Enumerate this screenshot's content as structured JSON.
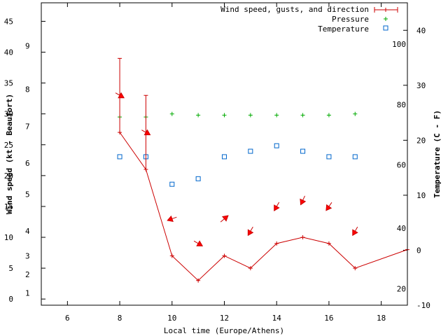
{
  "chart_data": {
    "type": "line",
    "xlabel": "Local time (Europe/Athens)",
    "ylabel": "Wind speed (kt - Beaufort)",
    "y2label": "Temperature (C - F)",
    "xlim": [
      5,
      19
    ],
    "ylim": [
      -1,
      48
    ],
    "x_ticks": [
      6,
      8,
      10,
      12,
      14,
      16,
      18
    ],
    "y_ticks": [
      0,
      5,
      10,
      15,
      20,
      25,
      30,
      35,
      40,
      45
    ],
    "y2lim": [
      -10,
      45
    ],
    "y2_ticks": [
      -10,
      0,
      10,
      20,
      30,
      40
    ],
    "beaufort_labels": [
      {
        "label": "1",
        "kt": 1
      },
      {
        "label": "2",
        "kt": 4
      },
      {
        "label": "3",
        "kt": 7
      },
      {
        "label": "4",
        "kt": 11
      },
      {
        "label": "5",
        "kt": 17
      },
      {
        "label": "6",
        "kt": 22
      },
      {
        "label": "7",
        "kt": 28
      },
      {
        "label": "8",
        "kt": 34
      },
      {
        "label": "9",
        "kt": 41
      }
    ],
    "fahrenheit_labels": [
      {
        "label": "20",
        "c": -7
      },
      {
        "label": "40",
        "c": 4
      },
      {
        "label": "60",
        "c": 15.5
      },
      {
        "label": "80",
        "c": 26.5
      },
      {
        "label": "100",
        "c": 37.5
      }
    ],
    "legend": [
      "Wind speed, gusts, and direction",
      "Pressure",
      "Temperature"
    ],
    "series": [
      {
        "name": "Wind speed, gusts, and direction",
        "color": "#cc0000",
        "x": [
          8,
          9,
          10,
          11,
          12,
          13,
          14,
          15,
          16,
          17,
          19
        ],
        "values": [
          27,
          21,
          7,
          3,
          7,
          5,
          9,
          10,
          9,
          5,
          8
        ],
        "gusts": [
          39,
          33,
          null,
          null,
          null,
          null,
          null,
          null,
          null,
          null,
          null
        ],
        "direction_deg": [
          120,
          120,
          250,
          120,
          50,
          210,
          210,
          205,
          215,
          210,
          null
        ]
      },
      {
        "name": "Pressure",
        "color": "#00aa00",
        "x": [
          8,
          9,
          10,
          11,
          12,
          13,
          14,
          15,
          16,
          17
        ],
        "values": [
          29.5,
          29.5,
          30,
          29.8,
          29.8,
          29.8,
          29.8,
          29.8,
          29.8,
          30
        ]
      },
      {
        "name": "Temperature",
        "color": "#0066cc",
        "x": [
          8,
          9,
          10,
          11,
          12,
          13,
          14,
          15,
          16,
          17
        ],
        "values": [
          17,
          17,
          12,
          13,
          17,
          18,
          19,
          18,
          17,
          17
        ]
      }
    ]
  }
}
